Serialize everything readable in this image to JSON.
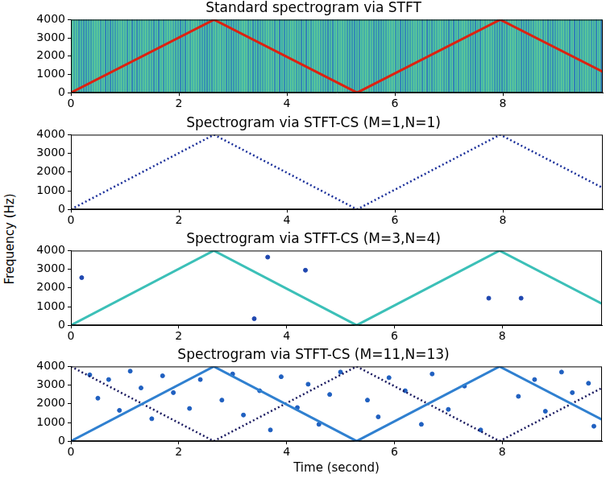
{
  "chart_data": [
    {
      "type": "line",
      "title": "Standard spectrogram via STFT",
      "xlim": [
        0,
        9.85
      ],
      "xticks": [
        0,
        2,
        4,
        6,
        8
      ],
      "ylim": [
        0,
        4000
      ],
      "yticks": [
        0,
        1000,
        2000,
        3000,
        4000
      ],
      "grid": false,
      "series": [
        {
          "type": "line",
          "color": "#dd2211",
          "line_style": "solid",
          "x": [
            0,
            2.65,
            5.3,
            7.95,
            9.85
          ],
          "values": [
            0,
            4000,
            0,
            4000,
            1150
          ]
        }
      ]
    },
    {
      "type": "line",
      "title": "Spectrogram via STFT-CS (M=1,N=1)",
      "xlim": [
        0,
        9.85
      ],
      "xticks": [
        0,
        2,
        4,
        6,
        8
      ],
      "ylim": [
        0,
        4000
      ],
      "yticks": [
        0,
        1000,
        2000,
        3000,
        4000
      ],
      "grid": false,
      "series": [
        {
          "type": "line",
          "color": "#1a2f9a",
          "line_style": "dotted",
          "x": [
            0,
            2.65,
            5.3,
            7.95,
            9.85
          ],
          "values": [
            0,
            4000,
            0,
            4000,
            1150
          ]
        }
      ]
    },
    {
      "type": "line",
      "title": "Spectrogram via STFT-CS (M=3,N=4)",
      "xlim": [
        0,
        9.85
      ],
      "xticks": [
        0,
        2,
        4,
        6,
        8
      ],
      "ylim": [
        0,
        4000
      ],
      "yticks": [
        0,
        1000,
        2000,
        3000,
        4000
      ],
      "grid": false,
      "series": [
        {
          "type": "line",
          "color": "#3cc0b8",
          "line_style": "solid",
          "x": [
            0,
            2.65,
            5.3,
            7.95,
            9.85
          ],
          "values": [
            0,
            4000,
            0,
            4000,
            1150
          ]
        },
        {
          "type": "scatter",
          "color": "#2048b0",
          "marker": "circle",
          "x": [
            0.2,
            3.4,
            3.65,
            4.35,
            7.75,
            8.35
          ],
          "values": [
            2550,
            350,
            3650,
            2950,
            1450,
            1450
          ]
        }
      ]
    },
    {
      "type": "line",
      "title": "Spectrogram via STFT-CS (M=11,N=13)",
      "xlabel": "Time (second)",
      "xlim": [
        0,
        9.85
      ],
      "xticks": [
        0,
        2,
        4,
        6,
        8
      ],
      "ylim": [
        0,
        4000
      ],
      "yticks": [
        0,
        1000,
        2000,
        3000,
        4000
      ],
      "grid": false,
      "series": [
        {
          "type": "line",
          "color": "#3080d0",
          "line_style": "solid",
          "x": [
            0,
            2.65,
            5.3,
            7.95,
            9.85
          ],
          "values": [
            0,
            4000,
            0,
            4000,
            1150
          ]
        },
        {
          "type": "line",
          "color": "#1a1a60",
          "line_style": "dotted",
          "x": [
            0,
            2.65,
            5.3,
            7.95,
            9.85
          ],
          "values": [
            4000,
            0,
            4000,
            0,
            2850
          ]
        },
        {
          "type": "scatter",
          "color": "#2060c0",
          "marker": "circle",
          "x": [
            0.35,
            0.7,
            0.5,
            0.9,
            1.1,
            1.3,
            1.5,
            1.7,
            1.9,
            2.2,
            2.4,
            2.8,
            3.0,
            3.2,
            3.5,
            3.7,
            3.9,
            4.2,
            4.4,
            4.6,
            4.8,
            5.0,
            5.5,
            5.7,
            5.9,
            6.2,
            6.5,
            6.7,
            7.0,
            7.3,
            7.6,
            8.3,
            8.6,
            8.8,
            9.1,
            9.3,
            9.6,
            9.7
          ],
          "values": [
            3550,
            3300,
            2300,
            1650,
            3750,
            2850,
            1200,
            3500,
            2600,
            1750,
            3300,
            2200,
            3600,
            1400,
            2700,
            600,
            3450,
            1800,
            3050,
            900,
            2500,
            3700,
            2200,
            1300,
            3400,
            2700,
            900,
            3600,
            1700,
            2950,
            600,
            2400,
            3300,
            1600,
            3700,
            2600,
            3100,
            800
          ]
        }
      ]
    }
  ],
  "ylabel": "Frequency (Hz)"
}
